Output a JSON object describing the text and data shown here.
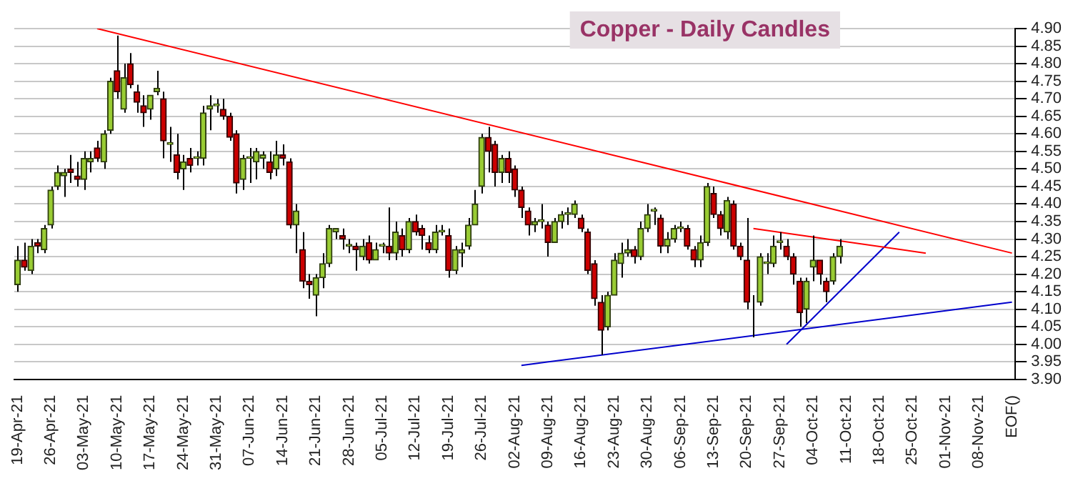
{
  "chart_data": {
    "type": "candlestick",
    "title": "Copper - Daily Candles",
    "categories": [
      "19-Apr-21",
      null,
      null,
      null,
      null,
      "26-Apr-21",
      null,
      null,
      null,
      null,
      "03-May-21",
      null,
      null,
      null,
      null,
      "10-May-21",
      null,
      null,
      null,
      null,
      "17-May-21",
      null,
      null,
      null,
      null,
      "24-May-21",
      null,
      null,
      null,
      null,
      "31-May-21",
      null,
      null,
      null,
      null,
      "07-Jun-21",
      null,
      null,
      null,
      null,
      "14-Jun-21",
      null,
      null,
      null,
      null,
      "21-Jun-21",
      null,
      null,
      null,
      null,
      "28-Jun-21",
      null,
      null,
      null,
      null,
      "05-Jul-21",
      null,
      null,
      null,
      null,
      "12-Jul-21",
      null,
      null,
      null,
      null,
      "19-Jul-21",
      null,
      null,
      null,
      null,
      "26-Jul-21",
      null,
      null,
      null,
      null,
      "02-Aug-21",
      null,
      null,
      null,
      null,
      "09-Aug-21",
      null,
      null,
      null,
      null,
      "16-Aug-21",
      null,
      null,
      null,
      null,
      "23-Aug-21",
      null,
      null,
      null,
      null,
      "30-Aug-21",
      null,
      null,
      null,
      null,
      "06-Sep-21",
      null,
      null,
      null,
      null,
      "13-Sep-21",
      null,
      null,
      null,
      null,
      "20-Sep-21",
      null,
      null,
      null,
      null,
      "27-Sep-21",
      null,
      null,
      null,
      null,
      "04-Oct-21",
      null,
      null,
      null,
      null,
      "11-Oct-21",
      null,
      null,
      null,
      null,
      "18-Oct-21",
      null,
      null,
      null,
      null,
      "25-Oct-21",
      null,
      null,
      null,
      null,
      "01-Nov-21",
      null,
      null,
      null,
      null,
      "08-Nov-21",
      null,
      null,
      null,
      null,
      "EOF()"
    ],
    "ohlc": [
      [
        4.17,
        4.28,
        4.15,
        4.24
      ],
      [
        4.24,
        4.29,
        4.21,
        4.22
      ],
      [
        4.21,
        4.3,
        4.2,
        4.28
      ],
      [
        4.29,
        4.3,
        4.26,
        4.28
      ],
      [
        4.27,
        4.34,
        4.26,
        4.33
      ],
      [
        4.34,
        4.45,
        4.33,
        4.44
      ],
      [
        4.45,
        4.51,
        4.44,
        4.49
      ],
      [
        4.48,
        4.5,
        4.42,
        4.49
      ],
      [
        4.5,
        4.54,
        4.46,
        4.49
      ],
      [
        4.48,
        4.52,
        4.45,
        4.47
      ],
      [
        4.47,
        4.55,
        4.44,
        4.53
      ],
      [
        4.52,
        4.55,
        4.49,
        4.53
      ],
      [
        4.56,
        4.58,
        4.52,
        4.53
      ],
      [
        4.52,
        4.61,
        4.5,
        4.6
      ],
      [
        4.61,
        4.76,
        4.6,
        4.75
      ],
      [
        4.78,
        4.88,
        4.7,
        4.72
      ],
      [
        4.67,
        4.8,
        4.66,
        4.76
      ],
      [
        4.8,
        4.83,
        4.73,
        4.74
      ],
      [
        4.72,
        4.74,
        4.66,
        4.69
      ],
      [
        4.68,
        4.71,
        4.62,
        4.66
      ],
      [
        4.67,
        4.71,
        4.64,
        4.71
      ],
      [
        4.72,
        4.78,
        4.71,
        4.73
      ],
      [
        4.7,
        4.72,
        4.53,
        4.58
      ],
      [
        4.57,
        4.62,
        4.52,
        4.575
      ],
      [
        4.54,
        4.6,
        4.47,
        4.49
      ],
      [
        4.5,
        4.54,
        4.44,
        4.52
      ],
      [
        4.53,
        4.56,
        4.49,
        4.51
      ],
      [
        4.53,
        4.55,
        4.51,
        4.535
      ],
      [
        4.53,
        4.68,
        4.51,
        4.66
      ],
      [
        4.67,
        4.71,
        4.61,
        4.68
      ],
      [
        4.68,
        4.7,
        4.66,
        4.685
      ],
      [
        4.67,
        4.7,
        4.64,
        4.65
      ],
      [
        4.65,
        4.66,
        4.58,
        4.59
      ],
      [
        4.6,
        4.61,
        4.43,
        4.46
      ],
      [
        4.47,
        4.54,
        4.44,
        4.53
      ],
      [
        4.53,
        4.56,
        4.46,
        4.535
      ],
      [
        4.52,
        4.56,
        4.47,
        4.55
      ],
      [
        4.53,
        4.55,
        4.5,
        4.54
      ],
      [
        4.52,
        4.55,
        4.47,
        4.49
      ],
      [
        4.5,
        4.58,
        4.48,
        4.54
      ],
      [
        4.54,
        4.57,
        4.51,
        4.53
      ],
      [
        4.52,
        4.53,
        4.33,
        4.34
      ],
      [
        4.34,
        4.4,
        4.26,
        4.38
      ],
      [
        4.27,
        4.32,
        4.16,
        4.18
      ],
      [
        4.18,
        4.2,
        4.13,
        4.17
      ],
      [
        4.14,
        4.2,
        4.08,
        4.19
      ],
      [
        4.19,
        4.26,
        4.16,
        4.23
      ],
      [
        4.23,
        4.34,
        4.22,
        4.33
      ],
      [
        4.32,
        4.33,
        4.3,
        4.33
      ],
      [
        4.31,
        4.33,
        4.27,
        4.3
      ],
      [
        4.28,
        4.3,
        4.26,
        4.285
      ],
      [
        4.28,
        4.29,
        4.21,
        4.27
      ],
      [
        4.25,
        4.3,
        4.24,
        4.28
      ],
      [
        4.29,
        4.31,
        4.23,
        4.24
      ],
      [
        4.24,
        4.29,
        4.24,
        4.27
      ],
      [
        4.28,
        4.29,
        4.26,
        4.285
      ],
      [
        4.28,
        4.39,
        4.24,
        4.26
      ],
      [
        4.26,
        4.35,
        4.24,
        4.32
      ],
      [
        4.31,
        4.33,
        4.25,
        4.27
      ],
      [
        4.27,
        4.36,
        4.26,
        4.35
      ],
      [
        4.35,
        4.37,
        4.31,
        4.32
      ],
      [
        4.33,
        4.34,
        4.27,
        4.31
      ],
      [
        4.29,
        4.31,
        4.26,
        4.27
      ],
      [
        4.27,
        4.34,
        4.26,
        4.32
      ],
      [
        4.32,
        4.34,
        4.31,
        4.325
      ],
      [
        4.31,
        4.33,
        4.19,
        4.21
      ],
      [
        4.21,
        4.28,
        4.2,
        4.27
      ],
      [
        4.26,
        4.29,
        4.22,
        4.27
      ],
      [
        4.28,
        4.36,
        4.27,
        4.34
      ],
      [
        4.34,
        4.44,
        4.34,
        4.4
      ],
      [
        4.45,
        4.6,
        4.43,
        4.59
      ],
      [
        4.59,
        4.62,
        4.49,
        4.55
      ],
      [
        4.57,
        4.58,
        4.45,
        4.49
      ],
      [
        4.49,
        4.54,
        4.46,
        4.53
      ],
      [
        4.53,
        4.55,
        4.46,
        4.49
      ],
      [
        4.5,
        4.51,
        4.42,
        4.44
      ],
      [
        4.44,
        4.45,
        4.36,
        4.39
      ],
      [
        4.38,
        4.39,
        4.31,
        4.34
      ],
      [
        4.34,
        4.36,
        4.32,
        4.35
      ],
      [
        4.35,
        4.4,
        4.33,
        4.355
      ],
      [
        4.34,
        4.35,
        4.25,
        4.29
      ],
      [
        4.29,
        4.36,
        4.29,
        4.35
      ],
      [
        4.35,
        4.38,
        4.33,
        4.37
      ],
      [
        4.37,
        4.39,
        4.34,
        4.375
      ],
      [
        4.37,
        4.41,
        4.36,
        4.4
      ],
      [
        4.36,
        4.37,
        4.32,
        4.33
      ],
      [
        4.32,
        4.33,
        4.2,
        4.21
      ],
      [
        4.23,
        4.24,
        4.11,
        4.13
      ],
      [
        4.12,
        4.14,
        3.97,
        4.04
      ],
      [
        4.05,
        4.15,
        4.04,
        4.14
      ],
      [
        4.14,
        4.26,
        4.14,
        4.24
      ],
      [
        4.23,
        4.29,
        4.19,
        4.26
      ],
      [
        4.26,
        4.3,
        4.25,
        4.27
      ],
      [
        4.27,
        4.28,
        4.23,
        4.25
      ],
      [
        4.25,
        4.35,
        4.24,
        4.33
      ],
      [
        4.33,
        4.4,
        4.32,
        4.37
      ],
      [
        4.38,
        4.39,
        4.34,
        4.385
      ],
      [
        4.36,
        4.37,
        4.26,
        4.28
      ],
      [
        4.28,
        4.32,
        4.26,
        4.3
      ],
      [
        4.3,
        4.34,
        4.29,
        4.33
      ],
      [
        4.33,
        4.35,
        4.32,
        4.335
      ],
      [
        4.33,
        4.34,
        4.27,
        4.28
      ],
      [
        4.27,
        4.28,
        4.22,
        4.24
      ],
      [
        4.24,
        4.31,
        4.22,
        4.29
      ],
      [
        4.29,
        4.46,
        4.28,
        4.45
      ],
      [
        4.43,
        4.45,
        4.36,
        4.37
      ],
      [
        4.37,
        4.38,
        4.31,
        4.33
      ],
      [
        4.32,
        4.42,
        4.3,
        4.41
      ],
      [
        4.4,
        4.41,
        4.27,
        4.28
      ],
      [
        4.28,
        4.29,
        4.24,
        4.25
      ],
      [
        4.24,
        4.36,
        4.1,
        4.12
      ],
      [
        4.13,
        4.14,
        4.02,
        4.13
      ],
      [
        4.12,
        4.26,
        4.11,
        4.25
      ],
      [
        4.23,
        4.26,
        4.2,
        4.235
      ],
      [
        4.23,
        4.31,
        4.22,
        4.28
      ],
      [
        4.29,
        4.32,
        4.27,
        4.295
      ],
      [
        4.28,
        4.3,
        4.24,
        4.25
      ],
      [
        4.25,
        4.26,
        4.17,
        4.2
      ],
      [
        4.18,
        4.19,
        4.05,
        4.09
      ],
      [
        4.1,
        4.19,
        4.06,
        4.18
      ],
      [
        4.22,
        4.31,
        4.18,
        4.24
      ],
      [
        4.24,
        4.24,
        4.17,
        4.2
      ],
      [
        4.18,
        4.19,
        4.12,
        4.15
      ],
      [
        4.18,
        4.26,
        4.17,
        4.25
      ],
      [
        4.25,
        4.3,
        4.23,
        4.28
      ],
      null,
      null,
      null,
      null,
      null,
      null,
      null,
      null,
      null,
      null,
      null,
      null,
      null,
      null,
      null,
      null,
      null,
      null,
      null,
      null,
      null,
      null,
      null,
      null,
      null,
      null
    ],
    "series": [
      {
        "type": "line",
        "color": "#ff0000",
        "values": [
          null,
          null,
          null,
          null,
          null,
          null,
          null,
          null,
          null,
          null,
          null,
          null,
          4.9,
          null,
          null,
          null,
          null,
          null,
          null,
          null,
          null,
          null,
          null,
          null,
          null,
          null,
          null,
          null,
          null,
          null,
          null,
          null,
          null,
          null,
          null,
          null,
          null,
          null,
          null,
          null,
          null,
          null,
          null,
          null,
          null,
          null,
          null,
          null,
          null,
          null,
          null,
          null,
          null,
          null,
          null,
          null,
          null,
          null,
          null,
          null,
          null,
          null,
          null,
          null,
          null,
          null,
          null,
          null,
          null,
          null,
          null,
          null,
          null,
          null,
          null,
          null,
          null,
          null,
          null,
          null,
          null,
          null,
          null,
          null,
          null,
          null,
          null,
          null,
          null,
          null,
          null,
          null,
          null,
          null,
          null,
          null,
          null,
          null,
          null,
          null,
          null,
          null,
          null,
          null,
          null,
          null,
          null,
          null,
          null,
          null,
          null,
          null,
          null,
          null,
          null,
          null,
          null,
          null,
          null,
          null,
          null,
          null,
          null,
          null,
          null,
          null,
          null,
          null,
          null,
          null,
          null,
          null,
          null,
          null,
          null,
          null,
          null,
          null,
          null,
          null,
          null,
          null,
          null,
          null,
          null,
          null,
          null,
          null,
          null,
          null,
          4.26
        ]
      },
      {
        "type": "line",
        "color": "#ff0000",
        "values": [
          null,
          null,
          null,
          null,
          null,
          null,
          null,
          null,
          null,
          null,
          null,
          null,
          null,
          null,
          null,
          null,
          null,
          null,
          null,
          null,
          null,
          null,
          null,
          null,
          null,
          null,
          null,
          null,
          null,
          null,
          null,
          null,
          null,
          null,
          null,
          null,
          null,
          null,
          null,
          null,
          null,
          null,
          null,
          null,
          null,
          null,
          null,
          null,
          null,
          null,
          null,
          null,
          null,
          null,
          null,
          null,
          null,
          null,
          null,
          null,
          null,
          null,
          null,
          null,
          null,
          null,
          null,
          null,
          null,
          null,
          null,
          null,
          null,
          null,
          null,
          null,
          null,
          null,
          null,
          null,
          null,
          null,
          null,
          null,
          null,
          null,
          null,
          null,
          null,
          null,
          null,
          null,
          null,
          null,
          null,
          null,
          null,
          null,
          null,
          null,
          null,
          null,
          null,
          null,
          null,
          null,
          null,
          null,
          null,
          null,
          null,
          4.33,
          null,
          null,
          null,
          null,
          null,
          null,
          null,
          null,
          null,
          null,
          null,
          null,
          null,
          null,
          null,
          null,
          null,
          null,
          null,
          null,
          null,
          null,
          null,
          null,
          null,
          4.26,
          null,
          null,
          null,
          null,
          null,
          null,
          null,
          null,
          null,
          null,
          null,
          null,
          null
        ]
      },
      {
        "type": "line",
        "color": "#0000cc",
        "values": [
          null,
          null,
          null,
          null,
          null,
          null,
          null,
          null,
          null,
          null,
          null,
          null,
          null,
          null,
          null,
          null,
          null,
          null,
          null,
          null,
          null,
          null,
          null,
          null,
          null,
          null,
          null,
          null,
          null,
          null,
          null,
          null,
          null,
          null,
          null,
          null,
          null,
          null,
          null,
          null,
          null,
          null,
          null,
          null,
          null,
          null,
          null,
          null,
          null,
          null,
          null,
          null,
          null,
          null,
          null,
          null,
          null,
          null,
          null,
          null,
          null,
          null,
          null,
          null,
          null,
          null,
          null,
          null,
          null,
          null,
          null,
          null,
          null,
          null,
          null,
          null,
          3.94,
          null,
          null,
          null,
          null,
          null,
          null,
          null,
          null,
          null,
          null,
          null,
          null,
          null,
          null,
          null,
          null,
          null,
          null,
          null,
          null,
          null,
          null,
          null,
          null,
          null,
          null,
          null,
          null,
          null,
          null,
          null,
          null,
          null,
          null,
          null,
          null,
          null,
          null,
          null,
          null,
          null,
          null,
          null,
          null,
          null,
          null,
          null,
          null,
          null,
          null,
          null,
          null,
          null,
          null,
          null,
          null,
          null,
          null,
          null,
          null,
          null,
          null,
          null,
          null,
          null,
          null,
          null,
          null,
          null,
          null,
          null,
          null,
          null,
          4.12
        ]
      },
      {
        "type": "line",
        "color": "#0000cc",
        "values": [
          null,
          null,
          null,
          null,
          null,
          null,
          null,
          null,
          null,
          null,
          null,
          null,
          null,
          null,
          null,
          null,
          null,
          null,
          null,
          null,
          null,
          null,
          null,
          null,
          null,
          null,
          null,
          null,
          null,
          null,
          null,
          null,
          null,
          null,
          null,
          null,
          null,
          null,
          null,
          null,
          null,
          null,
          null,
          null,
          null,
          null,
          null,
          null,
          null,
          null,
          null,
          null,
          null,
          null,
          null,
          null,
          null,
          null,
          null,
          null,
          null,
          null,
          null,
          null,
          null,
          null,
          null,
          null,
          null,
          null,
          null,
          null,
          null,
          null,
          null,
          null,
          null,
          null,
          null,
          null,
          null,
          null,
          null,
          null,
          null,
          null,
          null,
          null,
          null,
          null,
          null,
          null,
          null,
          null,
          null,
          null,
          null,
          null,
          null,
          null,
          null,
          null,
          null,
          null,
          null,
          null,
          null,
          null,
          null,
          null,
          null,
          null,
          null,
          null,
          null,
          null,
          4.0,
          null,
          null,
          null,
          null,
          null,
          null,
          null,
          null,
          null,
          null,
          null,
          null,
          null,
          null,
          null,
          null,
          4.32,
          null,
          null,
          null,
          null,
          null,
          null,
          null,
          null,
          null,
          null,
          null,
          null,
          null,
          null,
          null,
          null,
          null
        ]
      }
    ],
    "ylim": [
      3.9,
      4.9
    ],
    "yticks": [
      {
        "value": 3.9,
        "label": "3.90"
      },
      {
        "value": 3.95,
        "label": "3.95"
      },
      {
        "value": 4.0,
        "label": "4.00"
      },
      {
        "value": 4.05,
        "label": "4.05"
      },
      {
        "value": 4.1,
        "label": "4.10"
      },
      {
        "value": 4.15,
        "label": "4.15"
      },
      {
        "value": 4.2,
        "label": "4.20"
      },
      {
        "value": 4.25,
        "label": "4.25"
      },
      {
        "value": 4.3,
        "label": "4.30"
      },
      {
        "value": 4.35,
        "label": "4.35"
      },
      {
        "value": 4.4,
        "label": "4.40"
      },
      {
        "value": 4.45,
        "label": "4.45"
      },
      {
        "value": 4.5,
        "label": "4.50"
      },
      {
        "value": 4.55,
        "label": "4.55"
      },
      {
        "value": 4.6,
        "label": "4.60"
      },
      {
        "value": 4.65,
        "label": "4.65"
      },
      {
        "value": 4.7,
        "label": "4.70"
      },
      {
        "value": 4.75,
        "label": "4.75"
      },
      {
        "value": 4.8,
        "label": "4.80"
      },
      {
        "value": 4.85,
        "label": "4.85"
      },
      {
        "value": 4.9,
        "label": "4.90"
      }
    ],
    "grid": "y"
  }
}
